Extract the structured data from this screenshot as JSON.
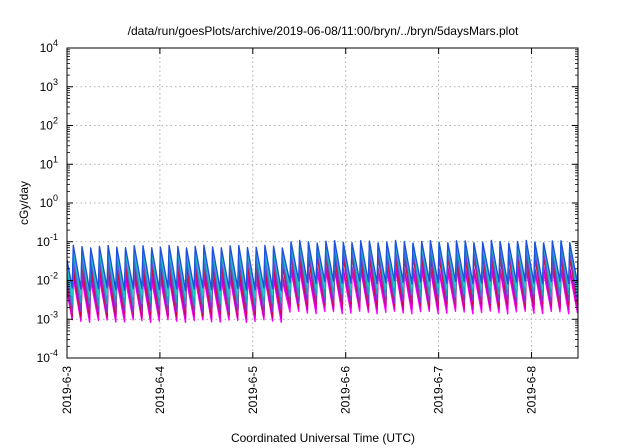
{
  "chart_data": {
    "type": "line",
    "title": "/data/run/goesPlots/archive/2019-06-08/11:00/bryn/../bryn/5daysMars.plot",
    "xlabel": "Coordinated Universal Time (UTC)",
    "ylabel": "cGy/day",
    "yscale": "log",
    "ylim": [
      0.0001,
      10000
    ],
    "xlim": [
      "2019-06-03 00:00",
      "2019-06-08 12:00"
    ],
    "y_ticks": [
      {
        "base": "10",
        "exp": "-4",
        "value": 0.0001
      },
      {
        "base": "10",
        "exp": "-3",
        "value": 0.001
      },
      {
        "base": "10",
        "exp": "-2",
        "value": 0.01
      },
      {
        "base": "10",
        "exp": "-1",
        "value": 0.1
      },
      {
        "base": "10",
        "exp": "0",
        "value": 1
      },
      {
        "base": "10",
        "exp": "1",
        "value": 10
      },
      {
        "base": "10",
        "exp": "2",
        "value": 100
      },
      {
        "base": "10",
        "exp": "3",
        "value": 1000
      },
      {
        "base": "10",
        "exp": "4",
        "value": 10000
      }
    ],
    "x_ticks": [
      "2019-6-3",
      "2019-6-4",
      "2019-6-5",
      "2019-6-6",
      "2019-6-7",
      "2019-6-8"
    ],
    "grid": true,
    "legend": "none",
    "pattern_period_hours": 2.25,
    "level_shift_time": "2019-06-05 09:00",
    "series_colors": [
      "#ff00ff",
      "#cc00cc",
      "#e0003c",
      "#7a3cc8",
      "#1e9fbf",
      "#20c8c8",
      "#2050e0"
    ],
    "series": [
      {
        "color": "#ff00ff",
        "peak_before": 0.011,
        "trough_before": 0.0009,
        "peak_after": 0.018,
        "trough_after": 0.0015
      },
      {
        "color": "#cc00cc",
        "peak_before": 0.014,
        "trough_before": 0.0011,
        "peak_after": 0.022,
        "trough_after": 0.0019
      },
      {
        "color": "#e0003c",
        "peak_before": 0.022,
        "trough_before": 0.0013,
        "peak_after": 0.04,
        "trough_after": 0.0023
      },
      {
        "color": "#7a3cc8",
        "peak_before": 0.035,
        "trough_before": 0.0016,
        "peak_after": 0.06,
        "trough_after": 0.0028
      },
      {
        "color": "#1e9fbf",
        "peak_before": 0.05,
        "trough_before": 0.0025,
        "peak_after": 0.085,
        "trough_after": 0.0042
      },
      {
        "color": "#20c8c8",
        "peak_before": 0.065,
        "trough_before": 0.004,
        "peak_after": 0.095,
        "trough_after": 0.0065
      },
      {
        "color": "#2050e0",
        "peak_before": 0.075,
        "trough_before": 0.006,
        "peak_after": 0.1,
        "trough_after": 0.009
      }
    ]
  }
}
